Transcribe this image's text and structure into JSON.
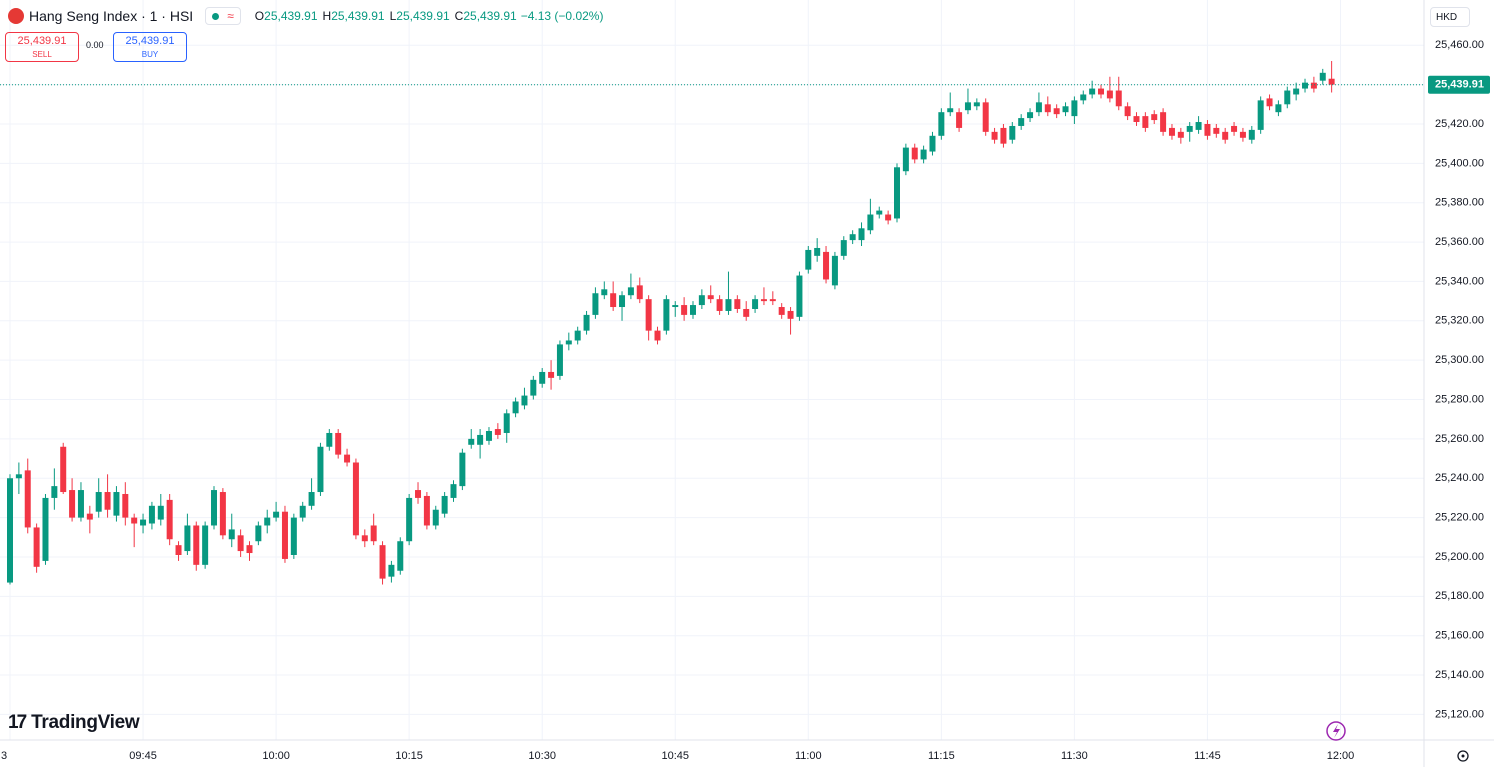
{
  "header": {
    "symbol": "Hang Seng Index · 1 · HSI",
    "ohlc": [
      {
        "label": "O",
        "value": "25,439.91"
      },
      {
        "label": "H",
        "value": "25,439.91"
      },
      {
        "label": "L",
        "value": "25,439.91"
      },
      {
        "label": "C",
        "value": "25,439.91"
      }
    ],
    "change": "−4.13 (−0.02%)"
  },
  "trade": {
    "sell_price": "25,439.91",
    "sell_label": "SELL",
    "spread": "0.00",
    "buy_price": "25,439.91",
    "buy_label": "BUY"
  },
  "currency": "HKD",
  "brand": "TradingView",
  "chart_data": {
    "type": "candlestick",
    "up_color": "#089981",
    "down_color": "#f23645",
    "grid": true,
    "x": [
      "09:30",
      "09:31",
      "09:32",
      "09:33",
      "09:34",
      "09:35",
      "09:36",
      "09:37",
      "09:38",
      "09:39",
      "09:40",
      "09:41",
      "09:42",
      "09:43",
      "09:44",
      "09:45",
      "09:46",
      "09:47",
      "09:48",
      "09:49",
      "09:50",
      "09:51",
      "09:52",
      "09:53",
      "09:54",
      "09:55",
      "09:56",
      "09:57",
      "09:58",
      "09:59",
      "10:00",
      "10:01",
      "10:02",
      "10:03",
      "10:04",
      "10:05",
      "10:06",
      "10:07",
      "10:08",
      "10:09",
      "10:10",
      "10:11",
      "10:12",
      "10:13",
      "10:14",
      "10:15",
      "10:16",
      "10:17",
      "10:18",
      "10:19",
      "10:20",
      "10:21",
      "10:22",
      "10:23",
      "10:24",
      "10:25",
      "10:26",
      "10:27",
      "10:28",
      "10:29",
      "10:30",
      "10:31",
      "10:32",
      "10:33",
      "10:34",
      "10:35",
      "10:36",
      "10:37",
      "10:38",
      "10:39",
      "10:40",
      "10:41",
      "10:42",
      "10:43",
      "10:44",
      "10:45",
      "10:46",
      "10:47",
      "10:48",
      "10:49",
      "10:50",
      "10:51",
      "10:52",
      "10:53",
      "10:54",
      "10:55",
      "10:56",
      "10:57",
      "10:58",
      "10:59",
      "11:00",
      "11:01",
      "11:02",
      "11:03",
      "11:04",
      "11:05",
      "11:06",
      "11:07",
      "11:08",
      "11:09",
      "11:10",
      "11:11",
      "11:12",
      "11:13",
      "11:14",
      "11:15",
      "11:16",
      "11:17",
      "11:18",
      "11:19",
      "11:20",
      "11:21",
      "11:22",
      "11:23",
      "11:24",
      "11:25",
      "11:26",
      "11:27",
      "11:28",
      "11:29",
      "11:30",
      "11:31",
      "11:32",
      "11:33",
      "11:34",
      "11:35",
      "11:36",
      "11:37",
      "11:38",
      "11:39",
      "11:40",
      "11:41",
      "11:42",
      "11:43",
      "11:44",
      "11:45",
      "11:46",
      "11:47",
      "11:48",
      "11:49",
      "11:50",
      "11:51",
      "11:52",
      "11:53",
      "11:54",
      "11:55",
      "11:56",
      "11:57",
      "11:58",
      "11:59"
    ],
    "open": [
      25187,
      25240,
      25244,
      25215,
      25198,
      25230,
      25256,
      25234,
      25220,
      25222,
      25223,
      25233,
      25221,
      25232,
      25220,
      25216,
      25217,
      25219,
      25229,
      25206,
      25203,
      25216,
      25196,
      25216,
      25233,
      25209,
      25211,
      25206,
      25208,
      25216,
      25220,
      25223,
      25201,
      25220,
      25226,
      25233,
      25256,
      25263,
      25252,
      25248,
      25211,
      25216,
      25206,
      25190,
      25193,
      25208,
      25234,
      25231,
      25216,
      25222,
      25230,
      25236,
      25257,
      25257,
      25259,
      25265,
      25263,
      25273,
      25277,
      25282,
      25288,
      25294,
      25292,
      25308,
      25310,
      25315,
      25323,
      25333,
      25334,
      25327,
      25333,
      25338,
      25331,
      25315,
      25315,
      25327,
      25328,
      25323,
      25328,
      25333,
      25331,
      25325,
      25331,
      25326,
      25326,
      25331,
      25331,
      25327,
      25325,
      25322,
      25346,
      25353,
      25355,
      25338,
      25353,
      25361,
      25361,
      25366,
      25374,
      25374,
      25372,
      25396,
      25408,
      25402,
      25406,
      25414,
      25426,
      25426,
      25427,
      25429,
      25431,
      25416,
      25418,
      25412,
      25419,
      25423,
      25426,
      25430,
      25428,
      25426,
      25424,
      25432,
      25435,
      25438,
      25437,
      25437,
      25429,
      25424,
      25424,
      25425,
      25426,
      25418,
      25416,
      25416,
      25417,
      25420,
      25418,
      25416,
      25419,
      25416,
      25412,
      25417,
      25433,
      25426,
      25430,
      25435,
      25438,
      25441,
      25442,
      25443
    ],
    "high": [
      25242,
      25248,
      25250,
      25217,
      25232,
      25245,
      25258,
      25240,
      25238,
      25226,
      25240,
      25242,
      25236,
      25238,
      25222,
      25222,
      25228,
      25232,
      25232,
      25208,
      25222,
      25218,
      25218,
      25236,
      25235,
      25222,
      25214,
      25208,
      25218,
      25224,
      25228,
      25226,
      25222,
      25228,
      25240,
      25258,
      25265,
      25265,
      25255,
      25250,
      25214,
      25222,
      25208,
      25198,
      25210,
      25232,
      25238,
      25233,
      25226,
      25233,
      25239,
      25255,
      25265,
      25265,
      25266,
      25268,
      25275,
      25281,
      25286,
      25292,
      25296,
      25300,
      25310,
      25314,
      25317,
      25325,
      25337,
      25340,
      25340,
      25335,
      25344,
      25342,
      25333,
      25317,
      25333,
      25330,
      25332,
      25330,
      25336,
      25338,
      25333,
      25345,
      25333,
      25330,
      25333,
      25337,
      25335,
      25329,
      25327,
      25345,
      25358,
      25362,
      25358,
      25355,
      25363,
      25366,
      25370,
      25382,
      25378,
      25376,
      25400,
      25410,
      25410,
      25409,
      25416,
      25428,
      25436,
      25428,
      25438,
      25433,
      25433,
      25418,
      25420,
      25421,
      25425,
      25428,
      25436,
      25434,
      25430,
      25431,
      25434,
      25437,
      25442,
      25440,
      25444,
      25444,
      25431,
      25426,
      25426,
      25427,
      25428,
      25420,
      25418,
      25421,
      25424,
      25422,
      25420,
      25418,
      25421,
      25418,
      25419,
      25434,
      25435,
      25432,
      25439,
      25441,
      25443,
      25444,
      25448,
      25452
    ],
    "low": [
      25186,
      25232,
      25212,
      25192,
      25196,
      25224,
      25232,
      25218,
      25218,
      25212,
      25220,
      25220,
      25218,
      25216,
      25205,
      25212,
      25214,
      25216,
      25206,
      25198,
      25201,
      25193,
      25194,
      25214,
      25209,
      25205,
      25200,
      25198,
      25206,
      25212,
      25218,
      25197,
      25199,
      25218,
      25224,
      25231,
      25254,
      25250,
      25246,
      25209,
      25205,
      25206,
      25186,
      25187,
      25191,
      25206,
      25227,
      25214,
      25214,
      25220,
      25228,
      25234,
      25255,
      25250,
      25257,
      25260,
      25258,
      25271,
      25275,
      25280,
      25286,
      25285,
      25290,
      25305,
      25308,
      25313,
      25321,
      25331,
      25325,
      25320,
      25331,
      25329,
      25310,
      25308,
      25313,
      25322,
      25320,
      25321,
      25326,
      25329,
      25323,
      25323,
      25324,
      25320,
      25324,
      25328,
      25328,
      25321,
      25313,
      25320,
      25344,
      25350,
      25339,
      25336,
      25351,
      25359,
      25358,
      25364,
      25372,
      25369,
      25370,
      25394,
      25400,
      25400,
      25404,
      25412,
      25424,
      25416,
      25425,
      25427,
      25414,
      25410,
      25408,
      25410,
      25417,
      25421,
      25424,
      25424,
      25423,
      25424,
      25420,
      25430,
      25433,
      25433,
      25431,
      25427,
      25422,
      25419,
      25416,
      25420,
      25414,
      25412,
      25410,
      25411,
      25415,
      25412,
      25413,
      25410,
      25414,
      25411,
      25410,
      25415,
      25427,
      25424,
      25428,
      25432,
      25436,
      25436,
      25440,
      25436
    ],
    "close": [
      25240,
      25242,
      25215,
      25195,
      25230,
      25236,
      25233,
      25220,
      25234,
      25219,
      25233,
      25224,
      25233,
      25220,
      25217,
      25219,
      25226,
      25226,
      25209,
      25201,
      25216,
      25196,
      25216,
      25234,
      25211,
      25214,
      25203,
      25202,
      25216,
      25220,
      25223,
      25199,
      25220,
      25226,
      25233,
      25256,
      25263,
      25252,
      25248,
      25211,
      25208,
      25208,
      25189,
      25196,
      25208,
      25230,
      25230,
      25216,
      25224,
      25231,
      25237,
      25253,
      25260,
      25262,
      25264,
      25262,
      25273,
      25279,
      25282,
      25290,
      25294,
      25291,
      25308,
      25310,
      25315,
      25323,
      25334,
      25336,
      25327,
      25333,
      25337,
      25331,
      25315,
      25310,
      25331,
      25328,
      25323,
      25328,
      25333,
      25331,
      25325,
      25331,
      25326,
      25322,
      25331,
      25330,
      25330,
      25323,
      25321,
      25343,
      25356,
      25357,
      25341,
      25353,
      25361,
      25364,
      25367,
      25374,
      25376,
      25371,
      25398,
      25408,
      25402,
      25407,
      25414,
      25426,
      25428,
      25418,
      25431,
      25431,
      25416,
      25412,
      25410,
      25419,
      25423,
      25426,
      25431,
      25426,
      25425,
      25429,
      25432,
      25435,
      25438,
      25435,
      25433,
      25429,
      25424,
      25421,
      25418,
      25422,
      25416,
      25414,
      25413,
      25419,
      25421,
      25414,
      25415,
      25412,
      25416,
      25413,
      25417,
      25432,
      25429,
      25430,
      25437,
      25438,
      25441,
      25438,
      25446,
      25440
    ],
    "ylim": [
      25107,
      25483
    ],
    "yticks": [
      {
        "value": 25120,
        "label": "25,120.00"
      },
      {
        "value": 25140,
        "label": "25,140.00"
      },
      {
        "value": 25160,
        "label": "25,160.00"
      },
      {
        "value": 25180,
        "label": "25,180.00"
      },
      {
        "value": 25200,
        "label": "25,200.00"
      },
      {
        "value": 25220,
        "label": "25,220.00"
      },
      {
        "value": 25240,
        "label": "25,240.00"
      },
      {
        "value": 25260,
        "label": "25,260.00"
      },
      {
        "value": 25280,
        "label": "25,280.00"
      },
      {
        "value": 25300,
        "label": "25,300.00"
      },
      {
        "value": 25320,
        "label": "25,320.00"
      },
      {
        "value": 25340,
        "label": "25,340.00"
      },
      {
        "value": 25360,
        "label": "25,360.00"
      },
      {
        "value": 25380,
        "label": "25,380.00"
      },
      {
        "value": 25400,
        "label": "25,400.00"
      },
      {
        "value": 25420,
        "label": "25,420.00"
      },
      {
        "value": 25440,
        "label": "25,440.00"
      },
      {
        "value": 25460,
        "label": "25,460.00"
      }
    ],
    "xticks": [
      {
        "value": "09:30",
        "label": "3"
      },
      "09:45",
      "10:00",
      "10:15",
      "10:30",
      "10:45",
      "11:00",
      "11:15",
      "11:30",
      "11:45",
      "12:00"
    ],
    "last_price": {
      "value": 25439.91,
      "label": "25,439.91"
    }
  }
}
